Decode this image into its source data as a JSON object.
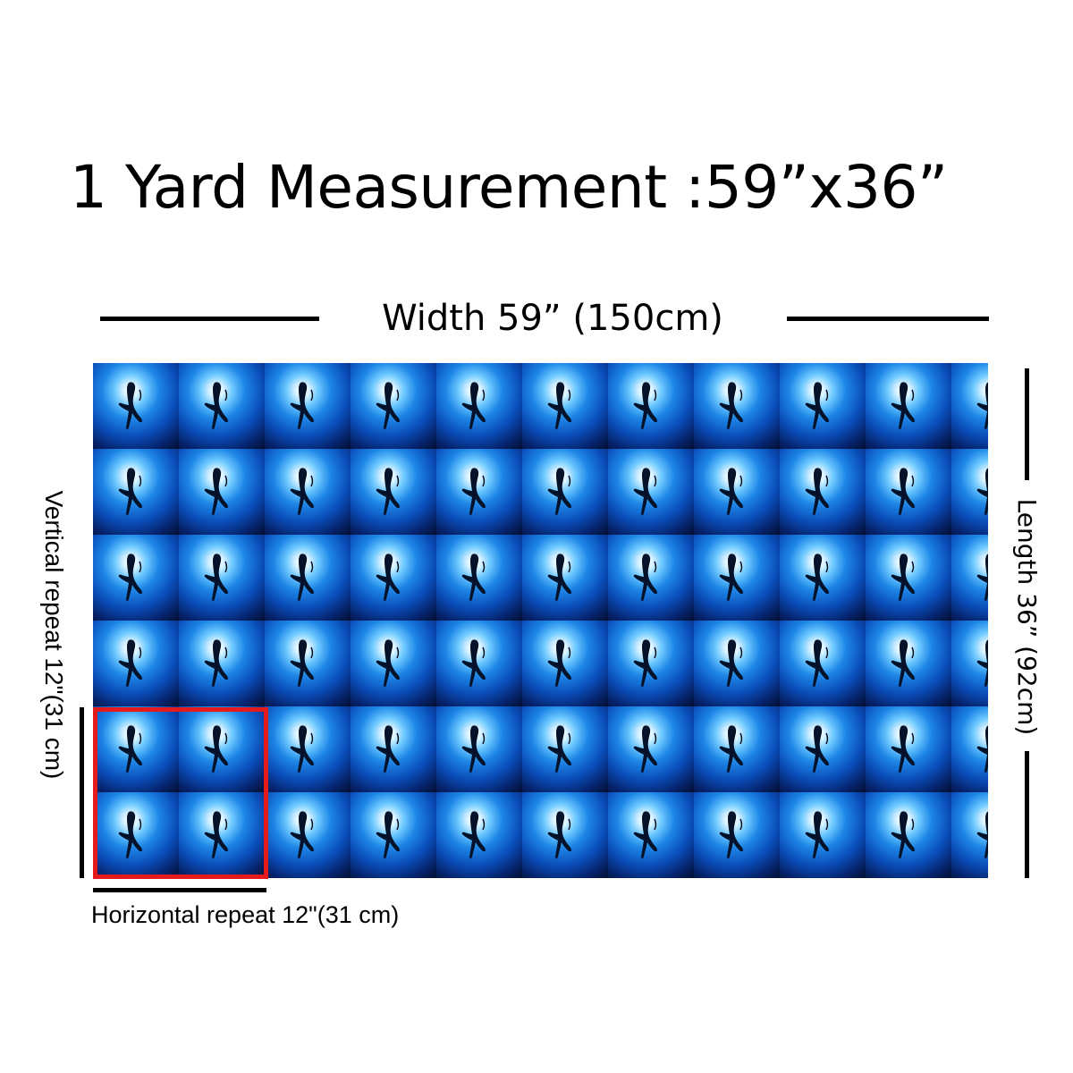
{
  "title": "1 Yard Measurement :59”x36”",
  "width_label": "Width 59” (150cm)",
  "length_label": "Length 36” (92cm)",
  "vertical_repeat_label": "Vertical repeat 12\"(31 cm)",
  "horizontal_repeat_label": "Horizontal repeat 12\"(31 cm)",
  "fabric": {
    "motif": "shark-silhouette-icon",
    "rows": 6,
    "columns_visible": 10.4
  },
  "colors": {
    "repeat_box": "#e51a1a",
    "water_dark": "#010814",
    "water_mid": "#1d86e6",
    "water_light": "#d8f2ff"
  }
}
